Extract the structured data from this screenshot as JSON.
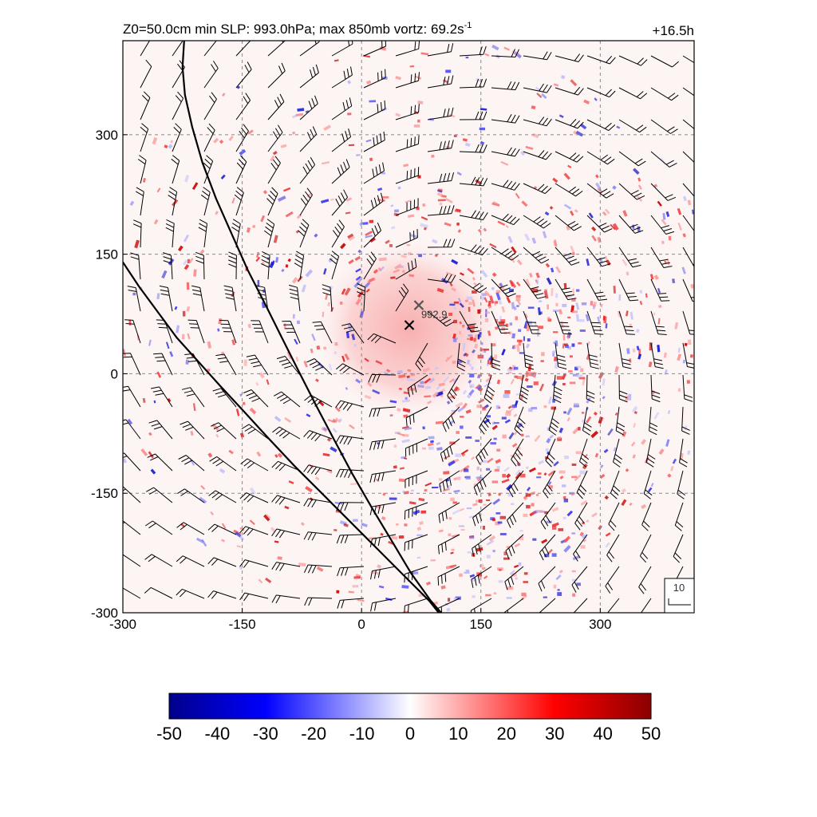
{
  "chart_data": {
    "type": "heatmap",
    "title": "Z0=50.0cm  min SLP: 993.0hPa; max 850mb vortz:  69.2s",
    "title_superscript": "-1",
    "time_label": "+16.5h",
    "x_ticks": [
      -300,
      -150,
      0,
      150,
      300
    ],
    "y_ticks": [
      -300,
      -150,
      0,
      150,
      300
    ],
    "xlim": [
      -300,
      418
    ],
    "ylim": [
      -300,
      418
    ],
    "grid": true,
    "centers": [
      {
        "x": 72,
        "y": 86,
        "label": "992.9"
      },
      {
        "x": 60,
        "y": 61,
        "label": ""
      }
    ],
    "colorbar": {
      "ticks": [
        -50,
        -40,
        -30,
        -20,
        -10,
        0,
        10,
        20,
        30,
        40,
        50
      ],
      "colors": [
        "#00008b",
        "#0000ff",
        "#ffffff",
        "#ff0000",
        "#8b0000"
      ]
    },
    "wind_key": {
      "label": "10"
    },
    "coastlines": [
      [
        [
          -223,
          418
        ],
        [
          -225,
          385
        ],
        [
          -222,
          350
        ],
        [
          -213,
          310
        ],
        [
          -200,
          265
        ],
        [
          -183,
          220
        ],
        [
          -163,
          175
        ],
        [
          -143,
          130
        ],
        [
          -120,
          85
        ],
        [
          -100,
          45
        ],
        [
          -80,
          5
        ],
        [
          -57,
          -40
        ],
        [
          -35,
          -82
        ],
        [
          -12,
          -125
        ],
        [
          14,
          -170
        ],
        [
          38,
          -210
        ],
        [
          62,
          -250
        ],
        [
          87,
          -285
        ],
        [
          100,
          -300
        ]
      ],
      [
        [
          -300,
          140
        ],
        [
          -280,
          110
        ],
        [
          -258,
          80
        ],
        [
          -232,
          45
        ],
        [
          -205,
          15
        ],
        [
          -178,
          -15
        ],
        [
          -150,
          -45
        ],
        [
          -118,
          -80
        ],
        [
          -85,
          -115
        ],
        [
          -50,
          -150
        ],
        [
          -15,
          -185
        ],
        [
          20,
          -220
        ],
        [
          55,
          -255
        ],
        [
          85,
          -285
        ],
        [
          97,
          -300
        ]
      ]
    ]
  }
}
